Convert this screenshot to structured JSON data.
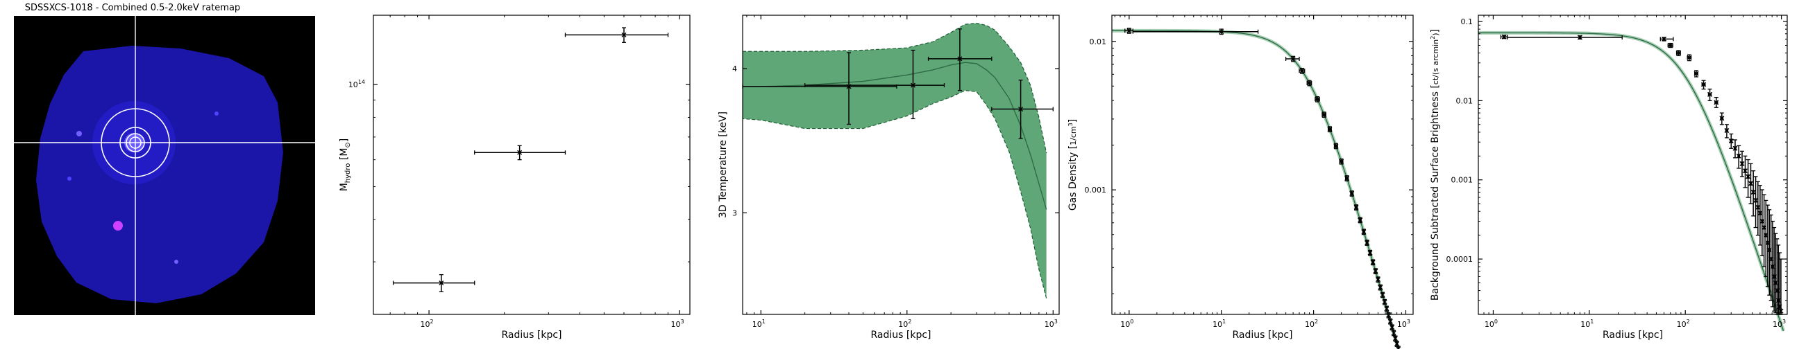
{
  "figure": {
    "image_panel": {
      "title": "SDSSXCS-1018 - Combined 0.5-2.0keV ratemap"
    },
    "colors": {
      "errorbar": "#000000",
      "model_fill": "#5fa777",
      "model_line": "#2e6b45",
      "model_edge": "#1f5e36",
      "ratemap_bg": "#000000",
      "ratemap_source": "#2020ff",
      "crosshair": "#ffffff",
      "regions": "#ffffff"
    }
  },
  "chart_data": [
    {
      "type": "scatter",
      "title": "",
      "xlabel": "Radius [kpc]",
      "ylabel": "M_hydro [M_sun]",
      "xscale": "log",
      "yscale": "log",
      "xlim": [
        60,
        1100
      ],
      "ylim": [
        21000000000000,
        160000000000000
      ],
      "xticks": [
        {
          "v": 100,
          "base": "10",
          "exp": "2"
        },
        {
          "v": 1000,
          "base": "10",
          "exp": "3"
        }
      ],
      "yticks": [
        {
          "v": 100000000000000,
          "base": "10",
          "exp": "14"
        }
      ],
      "points": [
        {
          "x": 112,
          "y": 26000000000000,
          "xlo": 72,
          "xhi": 152,
          "ylo": 24500000000000,
          "yhi": 27500000000000
        },
        {
          "x": 230,
          "y": 63000000000000,
          "xlo": 152,
          "xhi": 350,
          "ylo": 60000000000000,
          "yhi": 66000000000000
        },
        {
          "x": 600,
          "y": 140000000000000,
          "xlo": 350,
          "xhi": 900,
          "ylo": 133000000000000,
          "yhi": 147000000000000
        }
      ]
    },
    {
      "type": "line",
      "title": "",
      "xlabel": "Radius [kpc]",
      "ylabel": "3D Temperature [keV]",
      "xscale": "log",
      "yscale": "log",
      "xlim": [
        7.5,
        1100
      ],
      "ylim": [
        2.45,
        4.45
      ],
      "xticks": [
        {
          "v": 10,
          "base": "10",
          "exp": "1"
        },
        {
          "v": 100,
          "base": "10",
          "exp": "2"
        },
        {
          "v": 1000,
          "base": "10",
          "exp": "3"
        }
      ],
      "yticks": [
        {
          "v": 3,
          "label": "3"
        },
        {
          "v": 4,
          "label": "4"
        }
      ],
      "model_x": [
        7.5,
        10,
        20,
        50,
        100,
        150,
        200,
        250,
        300,
        350,
        400,
        500,
        600,
        700,
        800,
        900
      ],
      "model_y": [
        3.86,
        3.86,
        3.87,
        3.9,
        3.95,
        3.99,
        4.03,
        4.05,
        4.04,
        3.99,
        3.93,
        3.77,
        3.57,
        3.37,
        3.18,
        3.02
      ],
      "model_lower": [
        3.62,
        3.61,
        3.55,
        3.55,
        3.64,
        3.73,
        3.78,
        3.83,
        3.82,
        3.72,
        3.62,
        3.39,
        3.13,
        2.91,
        2.68,
        2.53
      ],
      "model_upper": [
        4.14,
        4.14,
        4.14,
        4.15,
        4.17,
        4.22,
        4.3,
        4.37,
        4.38,
        4.36,
        4.32,
        4.18,
        4.05,
        3.87,
        3.63,
        3.38
      ],
      "points": [
        {
          "x": 40,
          "y": 3.86,
          "xlo": 7.5,
          "xhi": 85,
          "ylo": 3.58,
          "yhi": 4.13
        },
        {
          "x": 110,
          "y": 3.87,
          "xlo": 20,
          "xhi": 180,
          "ylo": 3.62,
          "yhi": 4.15
        },
        {
          "x": 230,
          "y": 4.08,
          "xlo": 140,
          "xhi": 380,
          "ylo": 3.83,
          "yhi": 4.33
        },
        {
          "x": 600,
          "y": 3.69,
          "xlo": 380,
          "xhi": 1000,
          "ylo": 3.48,
          "yhi": 3.91
        }
      ]
    },
    {
      "type": "line",
      "title": "",
      "xlabel": "Radius [kpc]",
      "ylabel": "Gas Density [1/cm^3]",
      "xscale": "log",
      "yscale": "log",
      "xlim": [
        0.65,
        1200
      ],
      "ylim": [
        0.000145,
        0.015
      ],
      "xticks": [
        {
          "v": 1,
          "base": "10",
          "exp": "0"
        },
        {
          "v": 10,
          "base": "10",
          "exp": "1"
        },
        {
          "v": 100,
          "base": "10",
          "exp": "2"
        },
        {
          "v": 1000,
          "base": "10",
          "exp": "3"
        }
      ],
      "yticks": [
        {
          "v": 0.001,
          "label": "0.001"
        },
        {
          "v": 0.01,
          "label": "0.01"
        }
      ],
      "model": {
        "n0": 0.0118,
        "rc": 85,
        "beta": 0.72,
        "rmin": 0.65,
        "rmax": 920
      },
      "points": [
        {
          "x": 1.0,
          "xlo": 0.9,
          "xhi": 1.1
        },
        {
          "x": 10,
          "xlo": 1.1,
          "xhi": 25
        },
        {
          "x": 60,
          "xlo": 50,
          "xhi": 70
        },
        {
          "x": 75,
          "xlo": 70,
          "xhi": 80
        },
        {
          "x": 90,
          "xlo": 85,
          "xhi": 95
        },
        {
          "x": 110,
          "xlo": 104,
          "xhi": 116
        },
        {
          "x": 130,
          "xlo": 124,
          "xhi": 136
        },
        {
          "x": 150,
          "xlo": 144,
          "xhi": 156
        },
        {
          "x": 175,
          "xlo": 168,
          "xhi": 182
        },
        {
          "x": 200,
          "xlo": 192,
          "xhi": 208
        },
        {
          "x": 230,
          "xlo": 222,
          "xhi": 238
        },
        {
          "x": 260,
          "xlo": 252,
          "xhi": 268
        },
        {
          "x": 290,
          "xlo": 282,
          "xhi": 298
        },
        {
          "x": 320,
          "xlo": 312,
          "xhi": 328
        },
        {
          "x": 350,
          "xlo": 342,
          "xhi": 358
        },
        {
          "x": 380,
          "xlo": 372,
          "xhi": 388
        },
        {
          "x": 410,
          "xlo": 402,
          "xhi": 418
        },
        {
          "x": 440,
          "xlo": 432,
          "xhi": 448
        },
        {
          "x": 470,
          "xlo": 462,
          "xhi": 478
        },
        {
          "x": 500,
          "xlo": 492,
          "xhi": 508
        },
        {
          "x": 530,
          "xlo": 522,
          "xhi": 538
        },
        {
          "x": 560,
          "xlo": 552,
          "xhi": 568
        },
        {
          "x": 590,
          "xlo": 582,
          "xhi": 598
        },
        {
          "x": 620,
          "xlo": 612,
          "xhi": 628
        },
        {
          "x": 650,
          "xlo": 642,
          "xhi": 658
        },
        {
          "x": 680,
          "xlo": 672,
          "xhi": 688
        },
        {
          "x": 710,
          "xlo": 702,
          "xhi": 718
        },
        {
          "x": 740,
          "xlo": 732,
          "xhi": 748
        },
        {
          "x": 770,
          "xlo": 762,
          "xhi": 778
        },
        {
          "x": 800,
          "xlo": 792,
          "xhi": 808
        },
        {
          "x": 830,
          "xlo": 822,
          "xhi": 838
        },
        {
          "x": 860,
          "xlo": 852,
          "xhi": 868
        },
        {
          "x": 890,
          "xlo": 882,
          "xhi": 898
        }
      ]
    },
    {
      "type": "line",
      "title": "",
      "xlabel": "Radius [kpc]",
      "ylabel": "Background Subtracted Surface Brightness [ct/(s arcmin^2)]",
      "xscale": "log",
      "yscale": "log",
      "xlim": [
        0.7,
        1150
      ],
      "ylim": [
        2e-05,
        0.12
      ],
      "xticks": [
        {
          "v": 1,
          "base": "10",
          "exp": "0"
        },
        {
          "v": 10,
          "base": "10",
          "exp": "1"
        },
        {
          "v": 100,
          "base": "10",
          "exp": "2"
        },
        {
          "v": 1000,
          "base": "10",
          "exp": "3"
        }
      ],
      "yticks": [
        {
          "v": 0.0001,
          "label": "0.0001"
        },
        {
          "v": 0.001,
          "label": "0.001"
        },
        {
          "v": 0.01,
          "label": "0.01"
        },
        {
          "v": 0.1,
          "label": "0.1"
        }
      ],
      "model": {
        "s0": 0.072,
        "rc": 100,
        "beta": 0.78,
        "rmin": 0.7,
        "rmax": 1050
      },
      "points": [
        {
          "x": 1.3,
          "y": 0.064,
          "xlo": 1.2,
          "xhi": 1.4,
          "ylo": 0.061,
          "yhi": 0.067
        },
        {
          "x": 8,
          "y": 0.063,
          "xlo": 1.4,
          "xhi": 22,
          "ylo": 0.06,
          "yhi": 0.066
        },
        {
          "x": 60,
          "y": 0.06,
          "xlo": 55,
          "xhi": 75,
          "ylo": 0.057,
          "yhi": 0.063
        },
        {
          "x": 70,
          "y": 0.05,
          "xlo": 66,
          "xhi": 74,
          "ylo": 0.047,
          "yhi": 0.053
        },
        {
          "x": 85,
          "y": 0.04,
          "xlo": 81,
          "xhi": 89,
          "ylo": 0.037,
          "yhi": 0.043
        },
        {
          "x": 110,
          "y": 0.035,
          "xlo": 105,
          "xhi": 115,
          "ylo": 0.032,
          "yhi": 0.038
        },
        {
          "x": 130,
          "y": 0.022,
          "xlo": 125,
          "xhi": 135,
          "ylo": 0.02,
          "yhi": 0.024
        },
        {
          "x": 155,
          "y": 0.016,
          "xlo": 149,
          "xhi": 161,
          "ylo": 0.014,
          "yhi": 0.018
        },
        {
          "x": 180,
          "y": 0.012,
          "xlo": 174,
          "xhi": 186,
          "ylo": 0.01,
          "yhi": 0.014
        },
        {
          "x": 210,
          "y": 0.0095,
          "xlo": 203,
          "xhi": 217,
          "ylo": 0.0082,
          "yhi": 0.011
        },
        {
          "x": 240,
          "y": 0.006,
          "xlo": 233,
          "xhi": 247,
          "ylo": 0.005,
          "yhi": 0.007
        },
        {
          "x": 270,
          "y": 0.0042,
          "xlo": 263,
          "xhi": 277,
          "ylo": 0.0034,
          "yhi": 0.005
        },
        {
          "x": 300,
          "y": 0.0031,
          "xlo": 293,
          "xhi": 307,
          "ylo": 0.0025,
          "yhi": 0.0038
        },
        {
          "x": 330,
          "y": 0.0025,
          "xlo": 323,
          "xhi": 337,
          "ylo": 0.0019,
          "yhi": 0.0032
        },
        {
          "x": 360,
          "y": 0.002,
          "xlo": 353,
          "xhi": 367,
          "ylo": 0.0014,
          "yhi": 0.0027
        },
        {
          "x": 390,
          "y": 0.0016,
          "xlo": 383,
          "xhi": 397,
          "ylo": 0.0011,
          "yhi": 0.0023
        },
        {
          "x": 420,
          "y": 0.0013,
          "xlo": 413,
          "xhi": 427,
          "ylo": 0.0008,
          "yhi": 0.002
        },
        {
          "x": 450,
          "y": 0.0011,
          "xlo": 443,
          "xhi": 457,
          "ylo": 0.0006,
          "yhi": 0.0018
        },
        {
          "x": 480,
          "y": 0.0009,
          "xlo": 473,
          "xhi": 487,
          "ylo": 0.0005,
          "yhi": 0.0016
        },
        {
          "x": 510,
          "y": 0.0007,
          "xlo": 503,
          "xhi": 517,
          "ylo": 0.00035,
          "yhi": 0.0013
        },
        {
          "x": 540,
          "y": 0.00055,
          "xlo": 533,
          "xhi": 547,
          "ylo": 0.00025,
          "yhi": 0.0011
        },
        {
          "x": 570,
          "y": 0.00045,
          "xlo": 563,
          "xhi": 577,
          "ylo": 0.0002,
          "yhi": 0.00095
        },
        {
          "x": 600,
          "y": 0.00038,
          "xlo": 593,
          "xhi": 607,
          "ylo": 0.00015,
          "yhi": 0.00085
        },
        {
          "x": 630,
          "y": 0.0003,
          "xlo": 623,
          "xhi": 637,
          "ylo": 0.00011,
          "yhi": 0.00075
        },
        {
          "x": 660,
          "y": 0.00025,
          "xlo": 653,
          "xhi": 667,
          "ylo": 8e-05,
          "yhi": 0.00065
        },
        {
          "x": 690,
          "y": 0.0002,
          "xlo": 683,
          "xhi": 697,
          "ylo": 6e-05,
          "yhi": 0.00055
        },
        {
          "x": 720,
          "y": 0.00016,
          "xlo": 713,
          "xhi": 727,
          "ylo": 4.5e-05,
          "yhi": 0.00048
        },
        {
          "x": 750,
          "y": 0.00013,
          "xlo": 743,
          "xhi": 757,
          "ylo": 3.5e-05,
          "yhi": 0.00042
        },
        {
          "x": 780,
          "y": 0.0001,
          "xlo": 773,
          "xhi": 787,
          "ylo": 3e-05,
          "yhi": 0.00036
        },
        {
          "x": 810,
          "y": 8e-05,
          "xlo": 803,
          "xhi": 817,
          "ylo": 2.5e-05,
          "yhi": 0.0003
        },
        {
          "x": 840,
          "y": 6e-05,
          "xlo": 833,
          "xhi": 847,
          "ylo": 2.2e-05,
          "yhi": 0.00025
        },
        {
          "x": 870,
          "y": 5e-05,
          "xlo": 863,
          "xhi": 877,
          "ylo": 2.1e-05,
          "yhi": 0.00021
        },
        {
          "x": 900,
          "y": 4e-05,
          "xlo": 893,
          "xhi": 907,
          "ylo": 2e-05,
          "yhi": 0.00018
        },
        {
          "x": 930,
          "y": 3e-05,
          "xlo": 923,
          "xhi": 937,
          "ylo": 2e-05,
          "yhi": 0.00015
        },
        {
          "x": 960,
          "y": 2.5e-05,
          "xlo": 953,
          "xhi": 967,
          "ylo": 2e-05,
          "yhi": 0.00012
        },
        {
          "x": 990,
          "y": 2.2e-05,
          "xlo": 983,
          "xhi": 997,
          "ylo": 2e-05,
          "yhi": 0.0001
        }
      ]
    }
  ]
}
